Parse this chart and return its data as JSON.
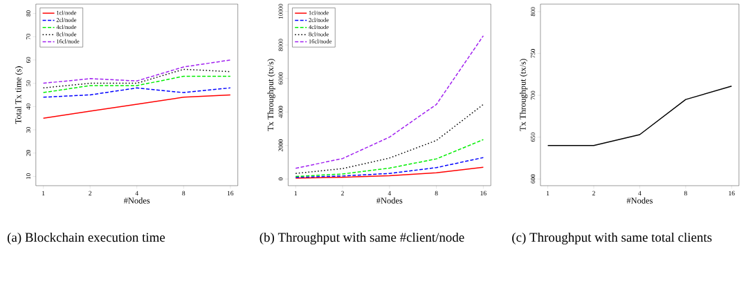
{
  "chart_data": [
    {
      "type": "line",
      "xlabel": "#Nodes",
      "ylabel": "Total Tx time (s)",
      "categories": [
        "1",
        "2",
        "4",
        "8",
        "16"
      ],
      "ylim": [
        6,
        84
      ],
      "yticks": [
        10,
        20,
        30,
        40,
        50,
        60,
        70,
        80
      ],
      "legend": "top left",
      "series": [
        {
          "name": "1cl/node",
          "color": "#ff0000",
          "line_style": "solid",
          "values": [
            35,
            38,
            41,
            44,
            45
          ]
        },
        {
          "name": "2cl/node",
          "color": "#0000ff",
          "line_style": "dashed",
          "values": [
            44,
            45,
            48,
            46,
            48
          ]
        },
        {
          "name": "4cl/node",
          "color": "#00ee00",
          "line_style": "dashed",
          "values": [
            46,
            49,
            49,
            53,
            53
          ]
        },
        {
          "name": "8cl/node",
          "color": "#000000",
          "line_style": "dotted",
          "values": [
            48,
            50,
            50,
            56,
            55
          ]
        },
        {
          "name": "16cl/node",
          "color": "#a020f0",
          "line_style": "dashed",
          "values": [
            50,
            52,
            51,
            57,
            60
          ]
        }
      ],
      "annotations": [
        "(a) Blockchain execution time"
      ]
    },
    {
      "type": "line",
      "xlabel": "#Nodes",
      "ylabel": "Tx Throughput (tx/s)",
      "categories": [
        "1",
        "2",
        "4",
        "8",
        "16"
      ],
      "ylim": [
        -400,
        10440
      ],
      "yticks": [
        0,
        2000,
        4000,
        6000,
        8000,
        10000
      ],
      "legend": "top left",
      "series": [
        {
          "name": "1cl/node",
          "color": "#ff0000",
          "line_style": "solid",
          "values": [
            50,
            100,
            200,
            370,
            700
          ]
        },
        {
          "name": "2cl/node",
          "color": "#0000ff",
          "line_style": "dashed",
          "values": [
            100,
            180,
            330,
            680,
            1280
          ]
        },
        {
          "name": "4cl/node",
          "color": "#00ee00",
          "line_style": "dashed",
          "values": [
            150,
            300,
            650,
            1200,
            2350
          ]
        },
        {
          "name": "8cl/node",
          "color": "#000000",
          "line_style": "dotted",
          "values": [
            330,
            620,
            1250,
            2300,
            4450
          ]
        },
        {
          "name": "16cl/node",
          "color": "#a020f0",
          "line_style": "dashed",
          "values": [
            640,
            1220,
            2500,
            4450,
            8550
          ]
        }
      ],
      "annotations": [
        "(b) Throughput with same #client/node"
      ]
    },
    {
      "type": "line",
      "xlabel": "#Nodes",
      "ylabel": "Tx Throughput (tx/s)",
      "categories": [
        "1",
        "2",
        "4",
        "8",
        "16"
      ],
      "ylim": [
        592,
        809
      ],
      "yticks": [
        600,
        650,
        700,
        750,
        800
      ],
      "series": [
        {
          "color": "#000000",
          "line_style": "solid",
          "values": [
            640,
            640,
            653,
            695,
            711
          ]
        }
      ],
      "annotations": [
        "(c) Throughput with same total clients"
      ]
    }
  ]
}
